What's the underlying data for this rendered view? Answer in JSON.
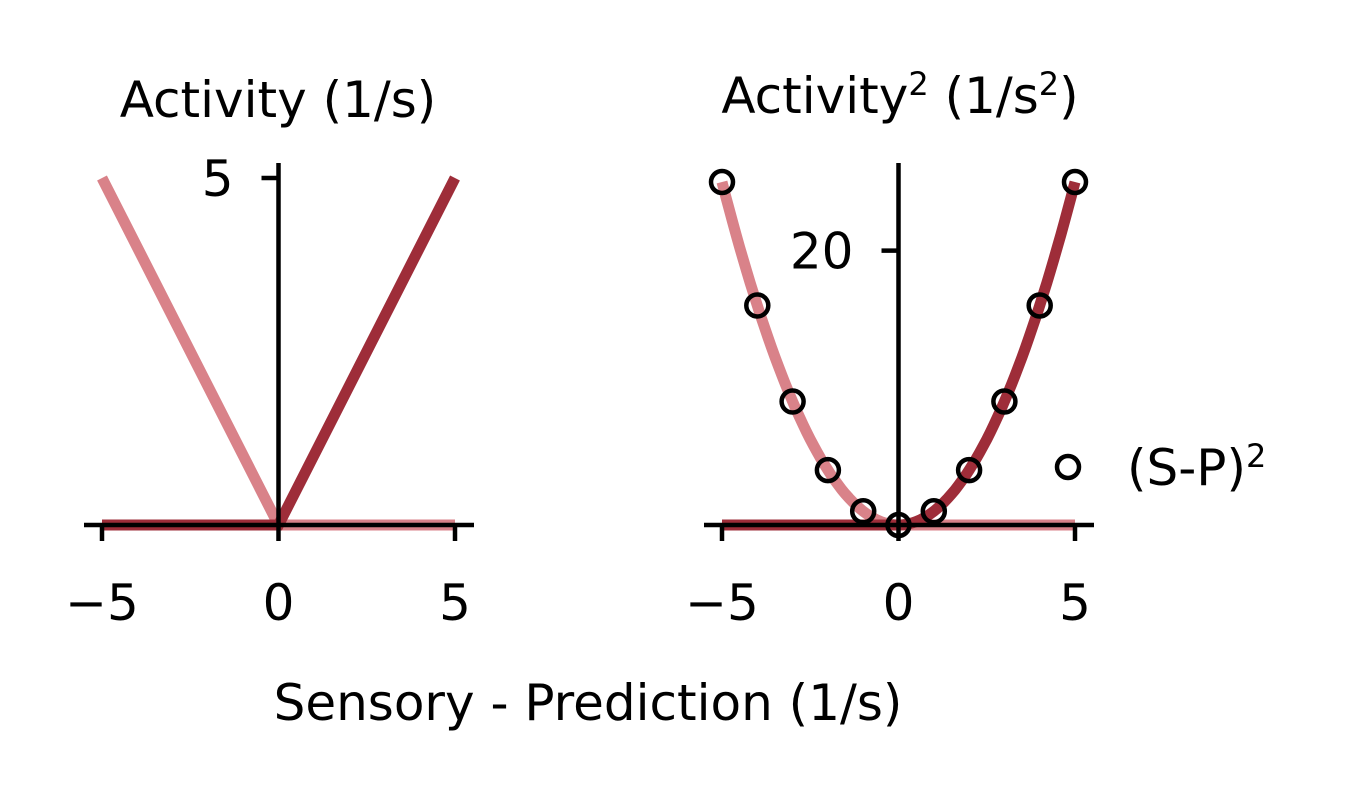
{
  "figure": {
    "xlabel": "Sensory - Prediction (1/s)"
  },
  "colors": {
    "light_series": "#d98289",
    "dark_series": "#9e2d39",
    "axis": "#000000"
  },
  "chart_data": [
    {
      "type": "line",
      "title": "Activity (1/s)",
      "xlabel": "Sensory - Prediction (1/s)",
      "ylabel": "",
      "xlim": [
        -5.5,
        5.5
      ],
      "ylim": [
        0,
        5.4
      ],
      "xticks": [
        -5,
        0,
        5
      ],
      "xtick_labels": [
        "−5",
        "0",
        "5"
      ],
      "yticks": [
        5
      ],
      "ytick_labels": [
        "5"
      ],
      "grid": false,
      "series": [
        {
          "color": "light",
          "x": [
            -5,
            0,
            5
          ],
          "y": [
            5,
            0,
            0
          ]
        },
        {
          "color": "dark",
          "x": [
            -5,
            0,
            5
          ],
          "y": [
            0,
            0,
            5
          ]
        }
      ]
    },
    {
      "type": "line",
      "title": "Activity² (1/s²)",
      "title_base": "Activity",
      "title_sup": "2",
      "title_mid": " (1/s",
      "title_sup2": "2",
      "title_end": ")",
      "xlabel": "Sensory - Prediction (1/s)",
      "ylabel": "",
      "xlim": [
        -5.5,
        5.5
      ],
      "ylim": [
        0,
        28
      ],
      "xticks": [
        -5,
        0,
        5
      ],
      "xtick_labels": [
        "−5",
        "0",
        "5"
      ],
      "yticks": [
        20
      ],
      "ytick_labels": [
        "20"
      ],
      "grid": false,
      "series": [
        {
          "color": "light",
          "x": [
            -5,
            -4,
            -3,
            -2,
            -1,
            0,
            1,
            2,
            3,
            4,
            5
          ],
          "y": [
            25,
            16,
            9,
            4,
            1,
            0,
            0,
            0,
            0,
            0,
            0
          ]
        },
        {
          "color": "dark",
          "x": [
            -5,
            -4,
            -3,
            -2,
            -1,
            0,
            1,
            2,
            3,
            4,
            5
          ],
          "y": [
            0,
            0,
            0,
            0,
            0,
            0,
            1,
            4,
            9,
            16,
            25
          ]
        },
        {
          "name": "(S-P)²",
          "name_base": "(S-P)",
          "name_sup": "2",
          "type": "scatter",
          "marker": "open-circle",
          "x": [
            -5,
            -4,
            -3,
            -2,
            -1,
            0,
            1,
            2,
            3,
            4,
            5
          ],
          "y": [
            25,
            16,
            9,
            4,
            1,
            0,
            1,
            4,
            9,
            16,
            25
          ]
        }
      ],
      "legend": {
        "placement": "right"
      }
    }
  ]
}
